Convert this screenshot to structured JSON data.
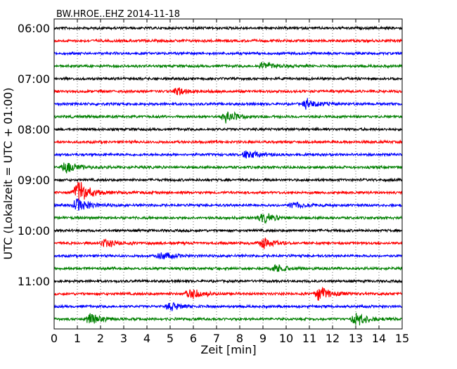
{
  "chart_data": {
    "type": "line",
    "title": "BW.HROE..EHZ 2014-11-18",
    "xlabel": "Zeit  [min]",
    "ylabel": "UTC (Lokalzeit = UTC + 01:00)",
    "xlim": [
      0,
      15
    ],
    "x_ticks": [
      "0",
      "1",
      "2",
      "3",
      "4",
      "5",
      "6",
      "7",
      "8",
      "9",
      "10",
      "11",
      "12",
      "13",
      "14",
      "15"
    ],
    "y_tick_labels": [
      "06:00",
      "07:00",
      "08:00",
      "09:00",
      "10:00",
      "11:00"
    ],
    "y_tick_rows": [
      0,
      4,
      8,
      12,
      16,
      20
    ],
    "grid": "vertical-dotted",
    "row_minutes": 15,
    "colors": [
      "#000000",
      "#ff0000",
      "#0000ff",
      "#008000"
    ],
    "series": [
      {
        "start": "06:00",
        "events": []
      },
      {
        "start": "06:15",
        "events": []
      },
      {
        "start": "06:30",
        "events": []
      },
      {
        "start": "06:45",
        "events": [
          {
            "minute": 9.0,
            "amp": 0.5
          }
        ]
      },
      {
        "start": "07:00",
        "events": []
      },
      {
        "start": "07:15",
        "events": [
          {
            "minute": 5.3,
            "amp": 0.45
          }
        ]
      },
      {
        "start": "07:30",
        "events": [
          {
            "minute": 10.9,
            "amp": 0.6
          }
        ]
      },
      {
        "start": "07:45",
        "events": [
          {
            "minute": 7.4,
            "amp": 0.75
          }
        ]
      },
      {
        "start": "08:00",
        "events": []
      },
      {
        "start": "08:15",
        "events": []
      },
      {
        "start": "08:30",
        "events": [
          {
            "minute": 8.3,
            "amp": 0.55
          }
        ]
      },
      {
        "start": "08:45",
        "events": [
          {
            "minute": 0.5,
            "amp": 0.7
          }
        ]
      },
      {
        "start": "09:00",
        "events": []
      },
      {
        "start": "09:15",
        "events": [
          {
            "minute": 1.0,
            "amp": 1.6
          }
        ]
      },
      {
        "start": "09:30",
        "events": [
          {
            "minute": 1.0,
            "amp": 0.9
          },
          {
            "minute": 10.3,
            "amp": 0.4
          }
        ]
      },
      {
        "start": "09:45",
        "events": [
          {
            "minute": 9.0,
            "amp": 0.6
          }
        ]
      },
      {
        "start": "10:00",
        "events": []
      },
      {
        "start": "10:15",
        "events": [
          {
            "minute": 2.2,
            "amp": 0.5
          },
          {
            "minute": 9.0,
            "amp": 0.6
          }
        ]
      },
      {
        "start": "10:30",
        "events": [
          {
            "minute": 4.6,
            "amp": 0.5
          }
        ]
      },
      {
        "start": "10:45",
        "events": [
          {
            "minute": 9.5,
            "amp": 0.5
          }
        ]
      },
      {
        "start": "11:00",
        "events": []
      },
      {
        "start": "11:15",
        "events": [
          {
            "minute": 5.8,
            "amp": 0.85
          },
          {
            "minute": 11.4,
            "amp": 0.85
          }
        ]
      },
      {
        "start": "11:30",
        "events": [
          {
            "minute": 5.0,
            "amp": 0.5
          }
        ]
      },
      {
        "start": "11:45",
        "events": [
          {
            "minute": 1.5,
            "amp": 0.6
          },
          {
            "minute": 13.0,
            "amp": 0.85
          }
        ]
      }
    ]
  }
}
